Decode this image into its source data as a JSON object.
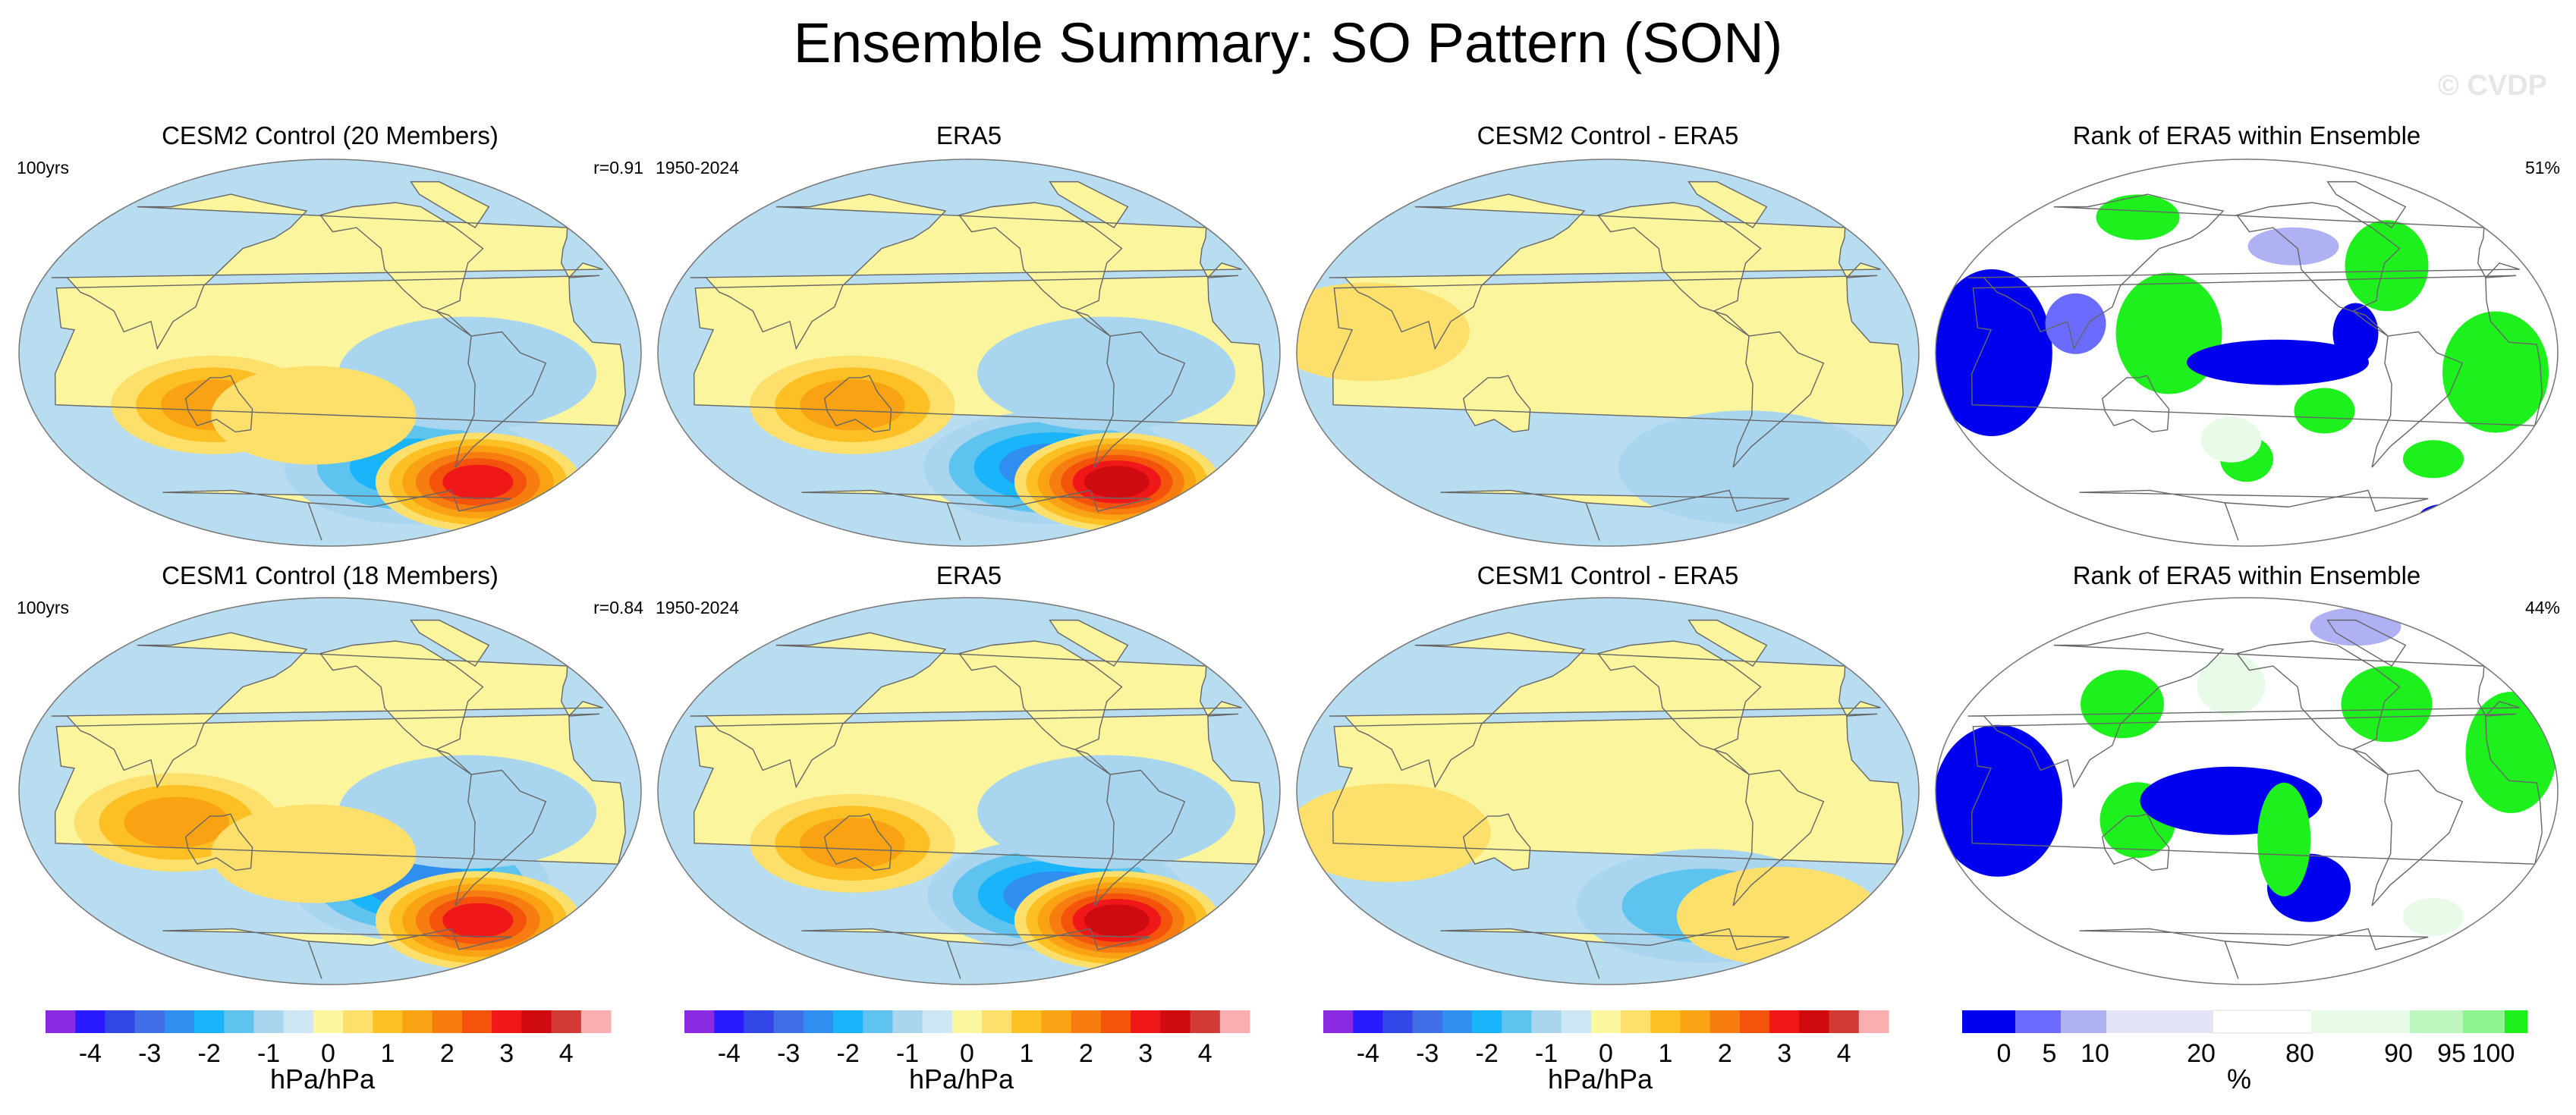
{
  "title": "Ensemble Summary: SO Pattern (SON)",
  "watermark": "© CVDP",
  "colors": {
    "diverging": [
      "#8a2be2",
      "#2a1aff",
      "#3346e8",
      "#3f6ee6",
      "#2f8ef0",
      "#19b4fa",
      "#5fc3f0",
      "#a9d6ee",
      "#cde7f4",
      "#fcf8a2",
      "#fde06c",
      "#fcc024",
      "#f8a214",
      "#f77d10",
      "#f4530c",
      "#ef1717",
      "#cf0a10",
      "#d23a35",
      "#fbaeb0"
    ],
    "rank": [
      "#0000ee",
      "#6b6bff",
      "#b0b0f4",
      "#e4e4f7",
      "#ffffff",
      "#e8fbe8",
      "#bff5bf",
      "#8ef58e",
      "#1ef01e"
    ],
    "ocean": "#b8dcf0",
    "land": "#fbf59d",
    "coast": "#666666"
  },
  "panels": {
    "r1c1": {
      "title": "CESM2 Control (20 Members)",
      "left_note": "100yrs",
      "right_note": "r=0.91"
    },
    "r1c2": {
      "title": "ERA5",
      "left_note": "1950-2024",
      "right_note": ""
    },
    "r1c3": {
      "title": "CESM2 Control - ERA5",
      "left_note": "",
      "right_note": ""
    },
    "r1c4": {
      "title": "Rank of ERA5 within Ensemble",
      "left_note": "",
      "right_note": "51%"
    },
    "r2c1": {
      "title": "CESM1 Control (18 Members)",
      "left_note": "100yrs",
      "right_note": "r=0.84"
    },
    "r2c2": {
      "title": "ERA5",
      "left_note": "1950-2024",
      "right_note": ""
    },
    "r2c3": {
      "title": "CESM1 Control - ERA5",
      "left_note": "",
      "right_note": ""
    },
    "r2c4": {
      "title": "Rank of ERA5 within Ensemble",
      "left_note": "",
      "right_note": "44%"
    }
  },
  "colorbars": {
    "pattern": {
      "ticks": [
        "-4",
        "-3",
        "-2",
        "-1",
        "0",
        "1",
        "2",
        "3",
        "4"
      ],
      "unit": "hPa/hPa"
    },
    "rank": {
      "ticks": [
        "0",
        "5",
        "10",
        "20",
        "80",
        "90",
        "95",
        "100"
      ],
      "unit": "%"
    }
  },
  "chart_data": {
    "type": "heatmap",
    "description_free": true,
    "pattern_levels_hpa_per_hpa": [
      -4.5,
      -4,
      -3.5,
      -3,
      -2.5,
      -2,
      -1.5,
      -1,
      -0.5,
      0,
      0.5,
      1,
      1.5,
      2,
      2.5,
      3,
      3.5,
      4,
      4.5
    ],
    "rank_levels_percent": [
      0,
      5,
      10,
      20,
      80,
      90,
      95,
      100
    ],
    "pattern_features": {
      "r1c1": [
        {
          "type": "neg",
          "lon": -100,
          "lat": -55,
          "value": -1.6
        },
        {
          "type": "neg",
          "lon": -80,
          "lat": -10,
          "value": -0.6
        },
        {
          "type": "pos",
          "lon": -45,
          "lat": -62,
          "value": 3.0
        },
        {
          "type": "pos",
          "lon": 130,
          "lat": -25,
          "value": 1.3
        },
        {
          "type": "pos",
          "lon": -170,
          "lat": -30,
          "value": 0.6
        }
      ],
      "r1c2": [
        {
          "type": "neg",
          "lon": -100,
          "lat": -55,
          "value": -2.0
        },
        {
          "type": "neg",
          "lon": -80,
          "lat": -10,
          "value": -0.6
        },
        {
          "type": "pos",
          "lon": -45,
          "lat": -62,
          "value": 3.6
        },
        {
          "type": "pos",
          "lon": 130,
          "lat": -25,
          "value": 1.3
        }
      ],
      "r1c3": [
        {
          "type": "neg",
          "lon": -60,
          "lat": -55,
          "value": -0.7
        },
        {
          "type": "pos",
          "lon": 60,
          "lat": 10,
          "value": 0.3
        }
      ],
      "r2c1": [
        {
          "type": "neg",
          "lon": -100,
          "lat": -45,
          "value": -1.8
        },
        {
          "type": "neg",
          "lon": -80,
          "lat": -10,
          "value": -0.6
        },
        {
          "type": "pos",
          "lon": -45,
          "lat": -62,
          "value": 3.0
        },
        {
          "type": "pos",
          "lon": 110,
          "lat": -15,
          "value": 1.4
        },
        {
          "type": "pos",
          "lon": -170,
          "lat": -30,
          "value": 0.7
        }
      ],
      "r2c2": [
        {
          "type": "neg",
          "lon": -100,
          "lat": -50,
          "value": -2.0
        },
        {
          "type": "neg",
          "lon": -80,
          "lat": -10,
          "value": -0.6
        },
        {
          "type": "pos",
          "lon": -45,
          "lat": -62,
          "value": 3.6
        },
        {
          "type": "pos",
          "lon": 130,
          "lat": -25,
          "value": 1.3
        }
      ],
      "r2c3": [
        {
          "type": "neg",
          "lon": -90,
          "lat": -55,
          "value": -0.8
        },
        {
          "type": "pos",
          "lon": -30,
          "lat": -60,
          "value": 0.7
        },
        {
          "type": "pos",
          "lon": 70,
          "lat": -20,
          "value": 0.5
        }
      ]
    }
  }
}
